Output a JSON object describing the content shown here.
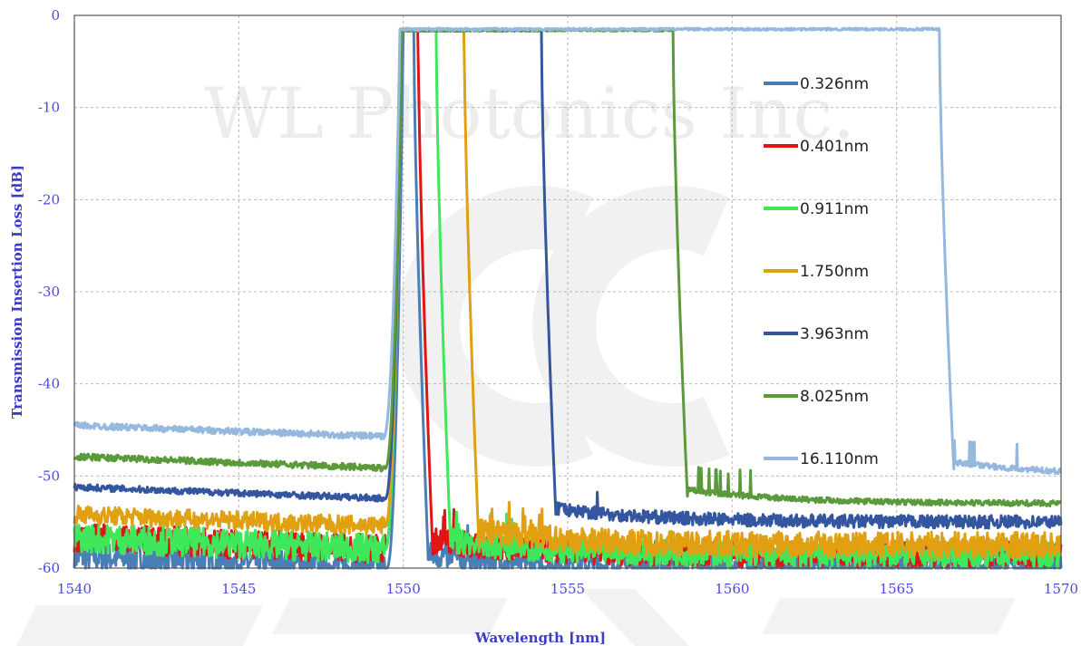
{
  "chart_data": {
    "type": "line",
    "xlabel": "Wavelength [nm]",
    "ylabel": "Transmission Insertion Loss [dB]",
    "xlim": [
      1540,
      1570
    ],
    "ylim": [
      -60,
      0
    ],
    "xticks": [
      1540,
      1545,
      1550,
      1555,
      1560,
      1565,
      1570
    ],
    "yticks": [
      0,
      -10,
      -20,
      -30,
      -40,
      -50,
      -60
    ],
    "grid": true,
    "legend_position": "right, inside plot",
    "watermark": "WL Photonics Inc.",
    "series": [
      {
        "name": "0.326nm",
        "color": "#4a7eb6",
        "left_edge": 1550.0,
        "right_edge": 1550.32,
        "passband_dB": -1.6,
        "left_floor_dB": -60,
        "right_floor_dB": -60
      },
      {
        "name": "0.401nm",
        "color": "#e01515",
        "left_edge": 1549.95,
        "right_edge": 1550.45,
        "passband_dB": -1.6,
        "left_floor_dB": -58,
        "right_floor_dB": -58.5
      },
      {
        "name": "0.911nm",
        "color": "#3ee85a",
        "left_edge": 1549.95,
        "right_edge": 1551.0,
        "passband_dB": -1.6,
        "left_floor_dB": -58,
        "right_floor_dB": -58.5
      },
      {
        "name": "1.750nm",
        "color": "#e0a012",
        "left_edge": 1549.95,
        "right_edge": 1551.85,
        "passband_dB": -1.6,
        "left_floor_dB": -55.5,
        "right_floor_dB": -57.5
      },
      {
        "name": "3.963nm",
        "color": "#3456a0",
        "left_edge": 1549.95,
        "right_edge": 1554.2,
        "passband_dB": -1.6,
        "left_floor_dB": -52.5,
        "right_floor_dB": -55.0
      },
      {
        "name": "8.025nm",
        "color": "#5a9a3a",
        "left_edge": 1549.95,
        "right_edge": 1558.2,
        "passband_dB": -1.6,
        "left_floor_dB": -49.2,
        "right_floor_dB": -53.0
      },
      {
        "name": "16.110nm",
        "color": "#95b8de",
        "left_edge": 1549.9,
        "right_edge": 1566.3,
        "passband_dB": -1.5,
        "left_floor_dB": -45.8,
        "right_floor_dB": -50.0
      }
    ]
  }
}
